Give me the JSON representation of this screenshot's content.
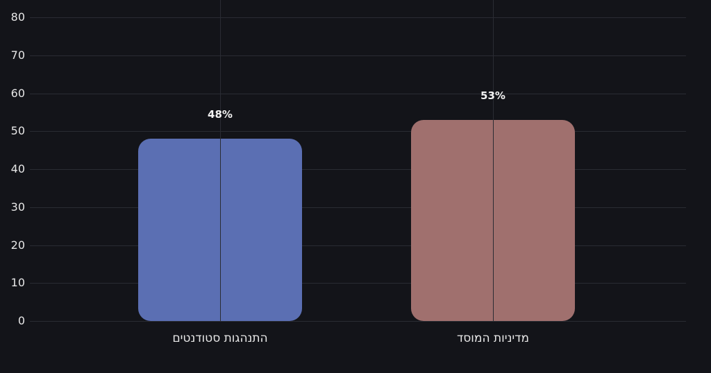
{
  "chart_data": {
    "type": "bar",
    "title": "",
    "xlabel": "",
    "ylabel": "",
    "categories": [
      "התנהגות סטודנטים",
      "מדיניות המוסד"
    ],
    "values": [
      48,
      53
    ],
    "value_labels": [
      "48%",
      "53%"
    ],
    "colors": [
      "#5b6fb3",
      "#a0706e"
    ],
    "ylim": [
      0,
      80
    ],
    "yticks": [
      "0",
      "10",
      "20",
      "30",
      "40",
      "50",
      "60",
      "70",
      "80"
    ],
    "grid": true,
    "legend": null
  },
  "theme": {
    "background": "#131419",
    "grid": "#2a2c33",
    "text": "#e6e6e6"
  }
}
